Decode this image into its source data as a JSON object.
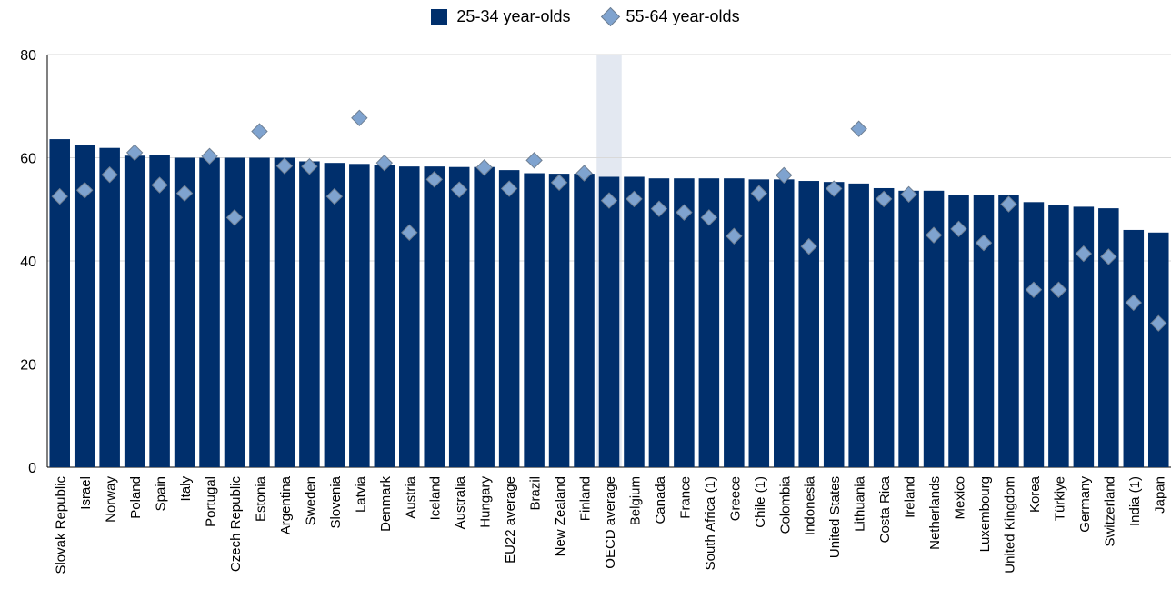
{
  "chart_data": {
    "type": "bar",
    "categories": [
      "Slovak Republic",
      "Israel",
      "Norway",
      "Poland",
      "Spain",
      "Italy",
      "Portugal",
      "Czech Republic",
      "Estonia",
      "Argentina",
      "Sweden",
      "Slovenia",
      "Latvia",
      "Denmark",
      "Austria",
      "Iceland",
      "Australia",
      "Hungary",
      "EU22 average",
      "Brazil",
      "New Zealand",
      "Finland",
      "OECD average",
      "Belgium",
      "Canada",
      "France",
      "South Africa (1)",
      "Greece",
      "Chile (1)",
      "Colombia",
      "Indonesia",
      "United States",
      "Lithuania",
      "Costa Rica",
      "Ireland",
      "Netherlands",
      "Mexico",
      "Luxembourg",
      "United Kingdom",
      "Korea",
      "Türkiye",
      "Germany",
      "Switzerland",
      "India (1)",
      "Japan"
    ],
    "series": [
      {
        "name": "25-34 year-olds",
        "kind": "bar",
        "color": "#002f6c",
        "values": [
          63.6,
          62.4,
          61.9,
          60.4,
          60.5,
          60.0,
          60.0,
          60.0,
          60.0,
          60.0,
          59.3,
          59.0,
          58.8,
          58.5,
          58.3,
          58.3,
          58.2,
          58.2,
          57.6,
          57.0,
          56.9,
          56.9,
          56.3,
          56.3,
          56.0,
          56.0,
          56.0,
          56.0,
          55.8,
          55.8,
          55.5,
          55.3,
          55.0,
          54.1,
          53.6,
          53.6,
          52.8,
          52.7,
          52.7,
          51.4,
          50.9,
          50.5,
          50.2,
          46.0,
          45.5
        ]
      },
      {
        "name": "55-64 year-olds",
        "kind": "marker",
        "color": "#7fa3cf",
        "values": [
          52.5,
          53.7,
          56.7,
          61.0,
          54.7,
          53.1,
          60.3,
          48.4,
          65.1,
          58.4,
          58.3,
          52.5,
          67.7,
          59.0,
          45.5,
          55.8,
          53.8,
          58.1,
          54.0,
          59.5,
          55.2,
          57.0,
          51.7,
          52.0,
          50.1,
          49.4,
          48.4,
          44.8,
          53.1,
          56.6,
          42.8,
          54.0,
          65.6,
          52.0,
          52.9,
          45.0,
          46.2,
          43.5,
          51.0,
          34.4,
          34.4,
          41.4,
          40.8,
          31.9,
          27.9
        ]
      }
    ],
    "highlight_category": "OECD average",
    "ylim": [
      0,
      80
    ],
    "yticks": [
      0,
      20,
      40,
      60,
      80
    ],
    "grid": true,
    "legend_position": "top-center",
    "colors": {
      "bar": "#002f6c",
      "marker": "#7fa3cf",
      "marker_edge": "#6f7f92",
      "highlight": "#e3e8f1",
      "grid": "#d9d9d9"
    }
  }
}
